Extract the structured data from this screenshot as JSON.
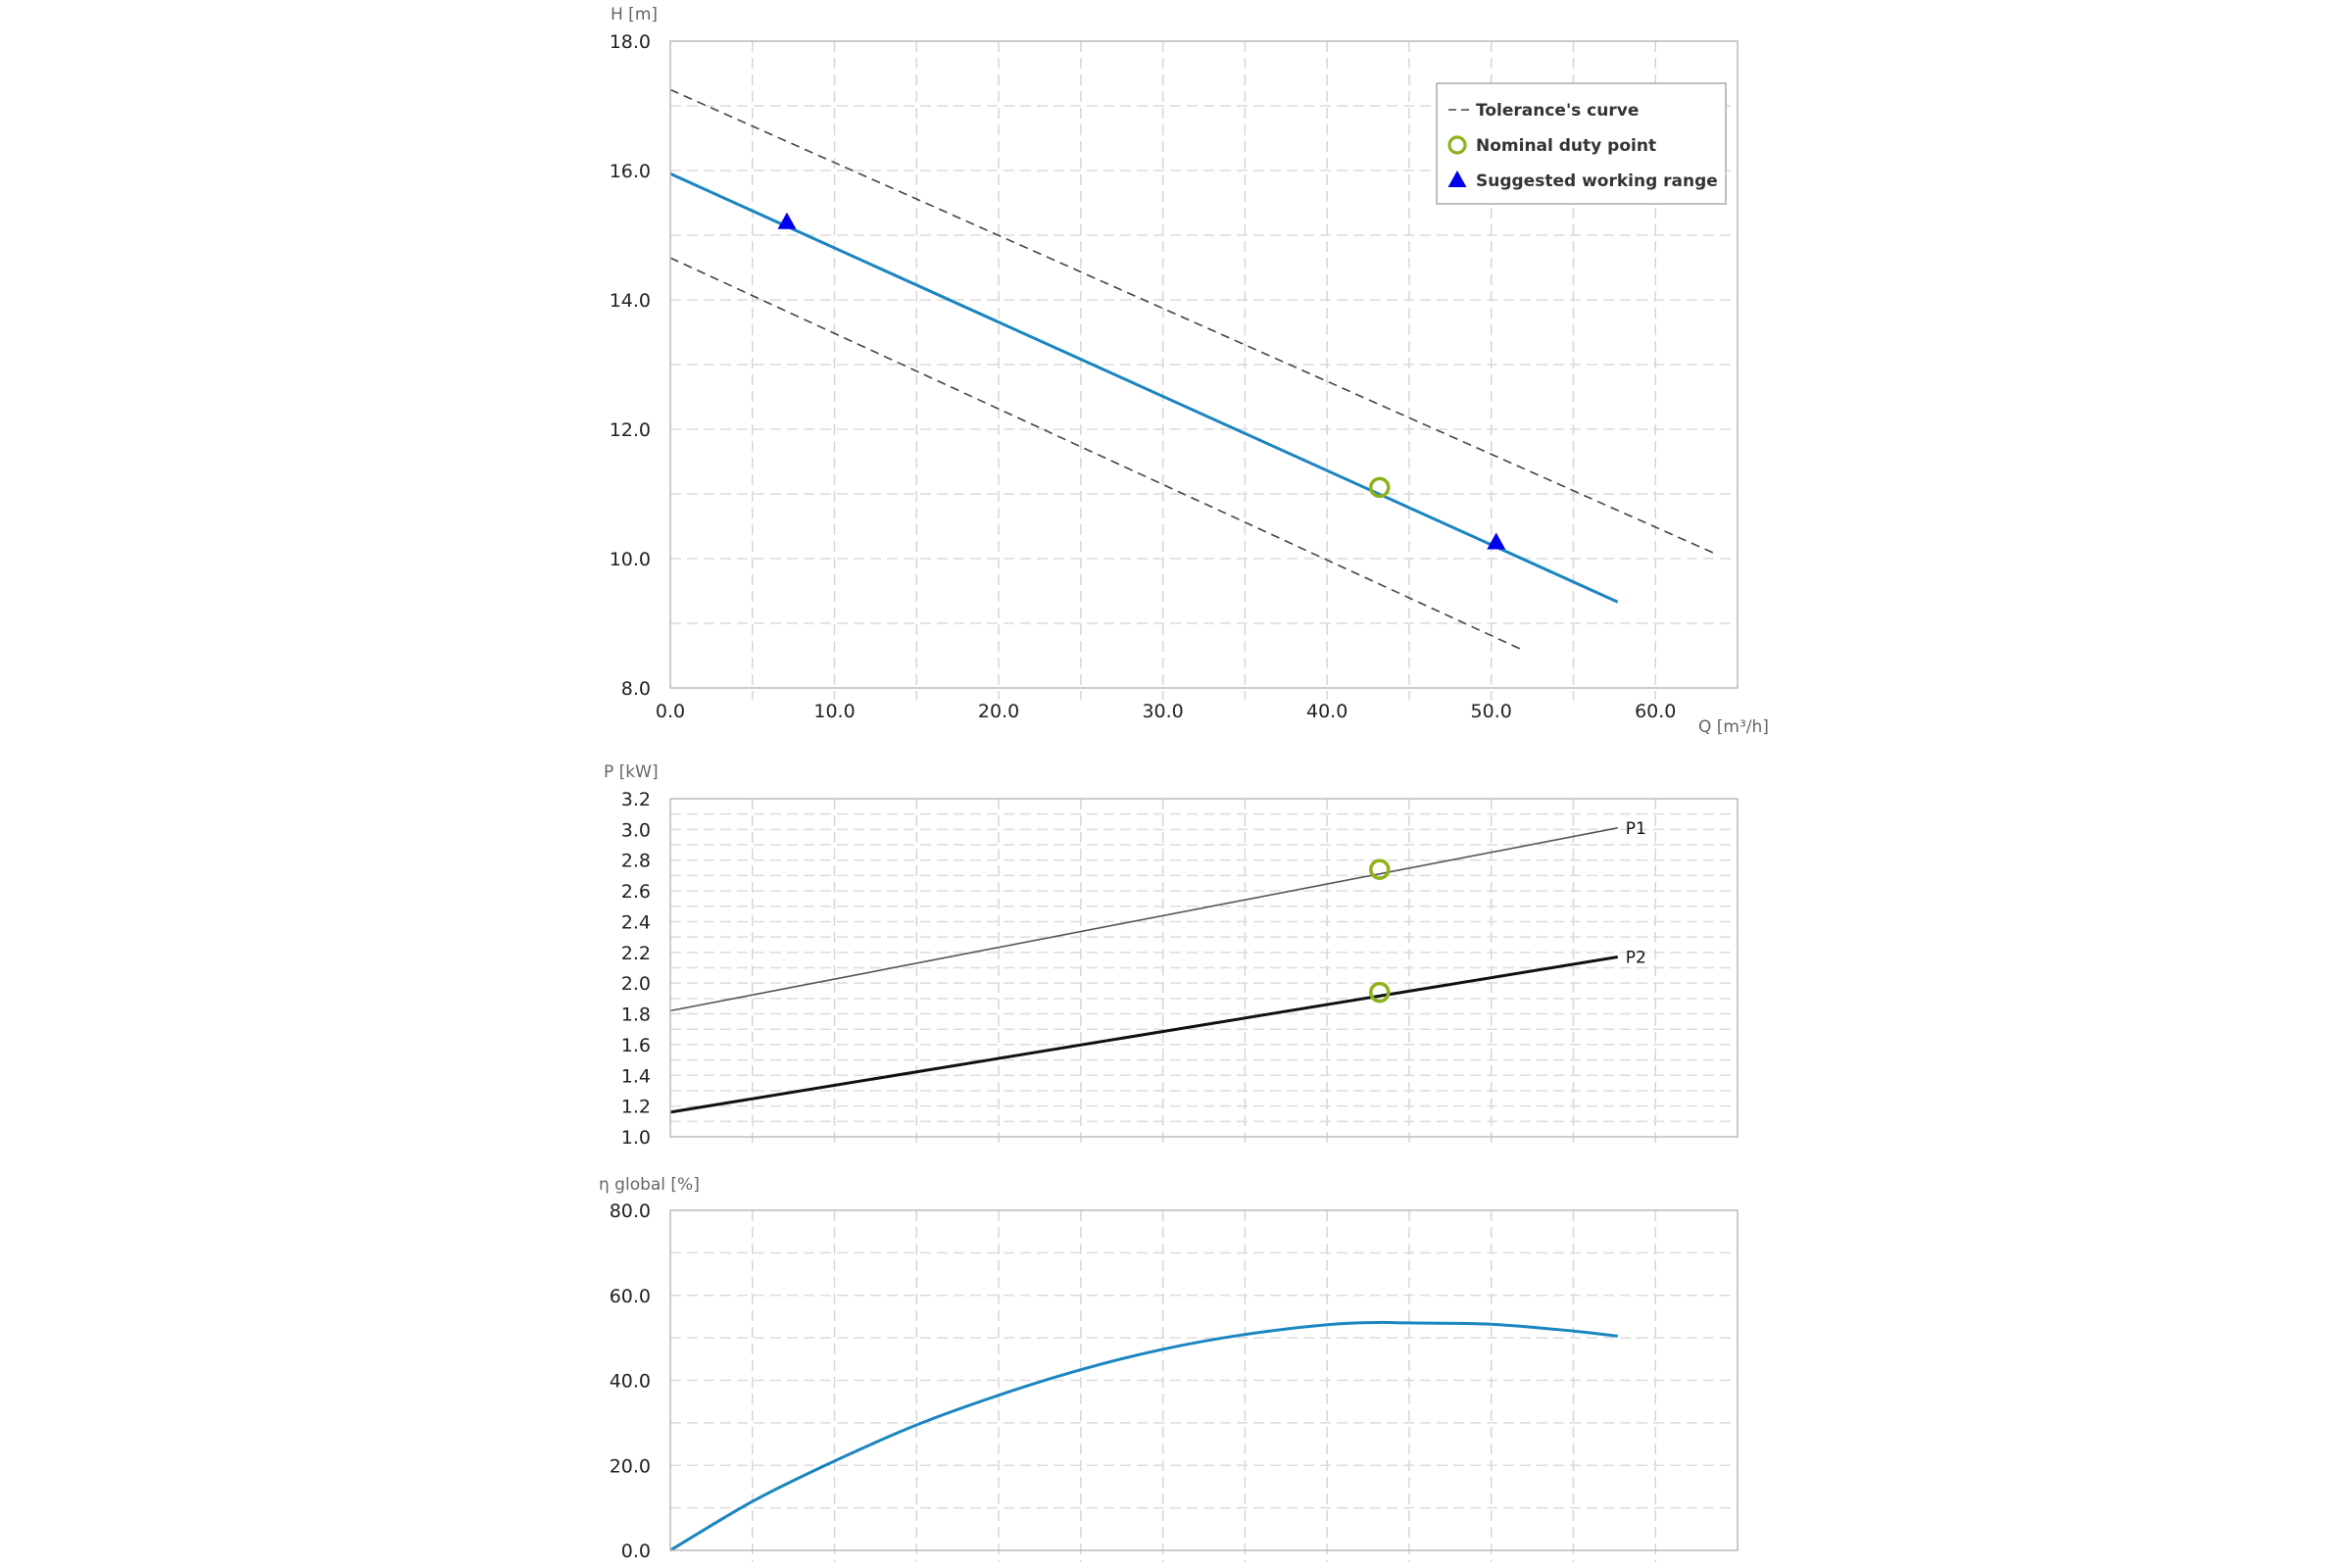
{
  "chart_data": [
    {
      "type": "line",
      "id": "head",
      "ylabel": "H [m]",
      "xlabel": "Q [m³/h]",
      "xlim": [
        0,
        65
      ],
      "ylim": [
        8,
        18
      ],
      "x_ticks": [
        "0.0",
        "10.0",
        "20.0",
        "30.0",
        "40.0",
        "50.0",
        "60.0"
      ],
      "y_ticks": [
        "8.0",
        "10.0",
        "12.0",
        "14.0",
        "16.0",
        "18.0"
      ],
      "grid": true,
      "legend_position": "top-right",
      "legend": [
        {
          "label": "Tolerance's curve",
          "marker": "dashed-line"
        },
        {
          "label": "Nominal duty point",
          "marker": "circle"
        },
        {
          "label": "Suggested working range",
          "marker": "triangle"
        }
      ],
      "series": [
        {
          "role": "curve",
          "color": "#1a85c0",
          "x": [
            0,
            57.7
          ],
          "y": [
            15.95,
            9.33
          ]
        },
        {
          "role": "tolerance-upper",
          "color": "#444444",
          "x": [
            0,
            63.7
          ],
          "y": [
            17.25,
            10.07
          ]
        },
        {
          "role": "tolerance-lower",
          "color": "#444444",
          "x": [
            0,
            51.8
          ],
          "y": [
            14.65,
            8.6
          ]
        }
      ],
      "nominal_duty_point": {
        "x": 43.2,
        "y": 11.1,
        "color": "#8db21a"
      },
      "working_range": [
        {
          "x": 7.1,
          "y": 15.2
        },
        {
          "x": 50.3,
          "y": 10.25
        }
      ],
      "working_range_color": "#0000ee"
    },
    {
      "type": "line",
      "id": "power",
      "ylabel": "P [kW]",
      "xlim": [
        0,
        65
      ],
      "ylim": [
        1.0,
        3.2
      ],
      "y_ticks": [
        "1.0",
        "1.2",
        "1.4",
        "1.6",
        "1.8",
        "2.0",
        "2.2",
        "2.4",
        "2.6",
        "2.8",
        "3.0",
        "3.2"
      ],
      "grid": true,
      "series": [
        {
          "name": "P1",
          "color": "#555555",
          "x": [
            0,
            57.7
          ],
          "y": [
            1.82,
            3.01
          ]
        },
        {
          "name": "P2",
          "color": "#111111",
          "x": [
            0,
            57.7
          ],
          "y": [
            1.16,
            2.17
          ]
        }
      ],
      "duty_points": [
        {
          "x": 43.2,
          "y": 2.74
        },
        {
          "x": 43.2,
          "y": 1.94
        }
      ],
      "duty_point_color": "#8db21a"
    },
    {
      "type": "line",
      "id": "efficiency",
      "ylabel": "η global [%]",
      "xlim": [
        0,
        65
      ],
      "ylim": [
        0,
        80
      ],
      "y_ticks": [
        "0.0",
        "20.0",
        "40.0",
        "60.0",
        "80.0"
      ],
      "grid": true,
      "series": [
        {
          "color": "#1a85c0",
          "x": [
            0,
            5,
            10,
            15,
            20,
            25,
            30,
            35,
            40,
            43,
            45,
            50,
            55,
            57.7
          ],
          "y": [
            0,
            11.5,
            21,
            29.5,
            36.5,
            42.5,
            47.3,
            50.8,
            53.1,
            53.6,
            53.5,
            53.2,
            51.6,
            50.4
          ]
        }
      ]
    }
  ]
}
